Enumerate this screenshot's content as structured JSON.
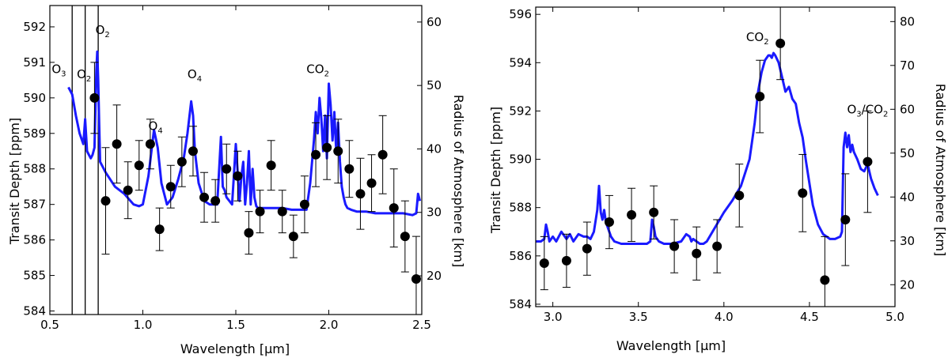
{
  "chart_data": [
    {
      "type": "line",
      "xlabel": "Wavelength [μm]",
      "ylabel": "Transit Depth [ppm]",
      "y2label": "Radius of Atmosphere [km]",
      "xlim": [
        0.5,
        2.5
      ],
      "ylim": [
        583.9,
        592.6
      ],
      "y2lim": [
        13.9,
        62.6
      ],
      "xticks": [
        0.5,
        1.0,
        1.5,
        2.0,
        2.5
      ],
      "yticks": [
        584,
        585,
        586,
        587,
        588,
        589,
        590,
        591,
        592
      ],
      "y2ticks": [
        20,
        30,
        40,
        50,
        60
      ],
      "grid": false,
      "series": [
        {
          "kind": "model",
          "color": "#1a1aff",
          "x": [
            0.6,
            0.62,
            0.64,
            0.66,
            0.68,
            0.69,
            0.7,
            0.71,
            0.72,
            0.73,
            0.74,
            0.75,
            0.755,
            0.76,
            0.765,
            0.77,
            0.8,
            0.85,
            0.9,
            0.95,
            0.98,
            1.0,
            1.03,
            1.06,
            1.08,
            1.1,
            1.13,
            1.16,
            1.19,
            1.22,
            1.24,
            1.26,
            1.27,
            1.28,
            1.3,
            1.33,
            1.36,
            1.4,
            1.42,
            1.43,
            1.44,
            1.45,
            1.48,
            1.5,
            1.52,
            1.53,
            1.54,
            1.55,
            1.56,
            1.57,
            1.58,
            1.59,
            1.6,
            1.61,
            1.62,
            1.65,
            1.7,
            1.75,
            1.8,
            1.85,
            1.88,
            1.9,
            1.92,
            1.93,
            1.94,
            1.95,
            1.96,
            1.97,
            1.98,
            1.99,
            2.0,
            2.01,
            2.02,
            2.03,
            2.04,
            2.05,
            2.06,
            2.07,
            2.08,
            2.09,
            2.1,
            2.12,
            2.15,
            2.2,
            2.25,
            2.3,
            2.35,
            2.4,
            2.45,
            2.47,
            2.48,
            2.49
          ],
          "y": [
            590.3,
            590.1,
            589.5,
            589.0,
            588.7,
            589.4,
            588.5,
            588.4,
            588.3,
            588.4,
            588.6,
            590.8,
            591.3,
            590.5,
            589.3,
            588.2,
            587.9,
            587.5,
            587.3,
            587.0,
            586.95,
            587.0,
            587.8,
            589.1,
            588.6,
            587.6,
            587.0,
            587.2,
            587.7,
            588.3,
            589.0,
            589.9,
            589.5,
            588.5,
            587.6,
            587.1,
            587.0,
            587.0,
            588.9,
            587.5,
            587.4,
            587.2,
            587.0,
            588.7,
            587.1,
            587.8,
            588.2,
            587.0,
            587.6,
            588.5,
            587.0,
            588.0,
            587.2,
            586.95,
            586.9,
            586.9,
            586.9,
            586.9,
            586.85,
            586.85,
            586.85,
            587.6,
            588.8,
            589.6,
            589.0,
            590.0,
            589.4,
            588.5,
            589.5,
            588.3,
            590.4,
            589.8,
            588.8,
            589.6,
            588.5,
            589.3,
            588.2,
            587.5,
            587.2,
            587.0,
            586.9,
            586.85,
            586.8,
            586.8,
            586.75,
            586.75,
            586.75,
            586.75,
            586.7,
            586.75,
            587.3,
            587.1
          ]
        },
        {
          "kind": "observations",
          "color": "#000000",
          "x": [
            0.74,
            0.8,
            0.86,
            0.92,
            0.98,
            1.04,
            1.09,
            1.15,
            1.21,
            1.27,
            1.33,
            1.39,
            1.45,
            1.51,
            1.57,
            1.63,
            1.69,
            1.75,
            1.81,
            1.87,
            1.93,
            1.99,
            2.05,
            2.11,
            2.17,
            2.23,
            2.29,
            2.35,
            2.41,
            2.47
          ],
          "y": [
            590.0,
            587.1,
            588.7,
            587.4,
            588.1,
            588.7,
            586.3,
            587.5,
            588.2,
            588.5,
            587.2,
            587.1,
            588.0,
            587.8,
            586.2,
            586.8,
            588.1,
            586.8,
            586.1,
            587.0,
            588.4,
            588.6,
            588.5,
            588.0,
            587.3,
            587.6,
            588.4,
            586.9,
            586.1,
            584.9
          ],
          "yerr": [
            1.0,
            1.5,
            1.1,
            0.8,
            0.7,
            0.7,
            0.6,
            0.6,
            0.7,
            0.7,
            0.7,
            0.6,
            0.7,
            0.7,
            0.6,
            0.6,
            0.7,
            0.6,
            0.6,
            0.8,
            0.9,
            0.9,
            0.9,
            0.8,
            1.0,
            0.8,
            1.1,
            1.1,
            1.0,
            1.2
          ]
        }
      ],
      "vlines": [
        0.62,
        0.69,
        0.76
      ],
      "annotations": [
        {
          "main": "O",
          "sub": "3",
          "x": 0.51,
          "y": 590.7
        },
        {
          "main": "O",
          "sub": "2",
          "x": 0.645,
          "y": 590.55
        },
        {
          "main": "O",
          "sub": "2",
          "x": 0.745,
          "y": 591.8
        },
        {
          "main": "O",
          "sub": "4",
          "x": 1.03,
          "y": 589.1
        },
        {
          "main": "O",
          "sub": "4",
          "x": 1.24,
          "y": 590.55
        },
        {
          "main": "CO",
          "sub": "2",
          "x": 1.88,
          "y": 590.7
        }
      ]
    },
    {
      "type": "line",
      "xlabel": "Wavelength [μm]",
      "ylabel": "Transit Depth [ppm]",
      "y2label": "Radius of Atmosphere [km]",
      "xlim": [
        2.9,
        5.0
      ],
      "ylim": [
        583.9,
        596.3
      ],
      "y2lim": [
        15.0,
        83.3
      ],
      "xticks": [
        3.0,
        3.5,
        4.0,
        4.5,
        5.0
      ],
      "yticks": [
        584,
        586,
        588,
        590,
        592,
        594,
        596
      ],
      "y2ticks": [
        20,
        30,
        40,
        50,
        60,
        70,
        80
      ],
      "grid": false,
      "series": [
        {
          "kind": "model",
          "color": "#1a1aff",
          "x": [
            2.9,
            2.93,
            2.95,
            2.96,
            2.97,
            2.98,
            3.0,
            3.02,
            3.05,
            3.08,
            3.1,
            3.12,
            3.15,
            3.18,
            3.2,
            3.22,
            3.24,
            3.26,
            3.27,
            3.28,
            3.29,
            3.3,
            3.31,
            3.32,
            3.34,
            3.36,
            3.4,
            3.45,
            3.5,
            3.55,
            3.57,
            3.58,
            3.59,
            3.6,
            3.62,
            3.65,
            3.7,
            3.75,
            3.78,
            3.8,
            3.81,
            3.82,
            3.84,
            3.86,
            3.88,
            3.9,
            3.95,
            4.0,
            4.05,
            4.1,
            4.15,
            4.18,
            4.2,
            4.22,
            4.24,
            4.26,
            4.27,
            4.28,
            4.29,
            4.3,
            4.32,
            4.34,
            4.36,
            4.38,
            4.4,
            4.42,
            4.44,
            4.46,
            4.48,
            4.5,
            4.52,
            4.55,
            4.58,
            4.6,
            4.62,
            4.65,
            4.68,
            4.69,
            4.7,
            4.71,
            4.72,
            4.73,
            4.74,
            4.75,
            4.76,
            4.78,
            4.8,
            4.82,
            4.84,
            4.86,
            4.88,
            4.9
          ],
          "y": [
            586.6,
            586.6,
            586.7,
            587.3,
            587.0,
            586.6,
            586.8,
            586.6,
            587.0,
            586.7,
            586.9,
            586.6,
            586.9,
            586.8,
            586.8,
            586.7,
            587.0,
            587.9,
            588.9,
            587.8,
            587.5,
            587.9,
            587.4,
            587.2,
            586.8,
            586.6,
            586.5,
            586.5,
            586.5,
            586.5,
            586.6,
            587.5,
            587.2,
            586.8,
            586.6,
            586.5,
            586.5,
            586.6,
            586.9,
            586.8,
            586.6,
            586.7,
            586.6,
            586.5,
            586.5,
            586.6,
            587.2,
            587.8,
            588.3,
            588.9,
            590.0,
            591.5,
            592.8,
            593.6,
            594.1,
            594.3,
            594.3,
            594.2,
            594.4,
            594.3,
            594.0,
            593.4,
            592.8,
            593.0,
            592.5,
            592.3,
            591.5,
            590.9,
            589.9,
            589.0,
            588.1,
            587.3,
            586.9,
            586.8,
            586.7,
            586.7,
            586.8,
            587.0,
            590.5,
            591.1,
            590.5,
            591.0,
            590.3,
            590.6,
            590.3,
            590.0,
            589.6,
            589.5,
            589.8,
            589.2,
            588.8,
            588.5
          ]
        },
        {
          "kind": "observations",
          "color": "#000000",
          "x": [
            2.95,
            3.08,
            3.2,
            3.33,
            3.46,
            3.59,
            3.71,
            3.84,
            3.96,
            4.09,
            4.21,
            4.33,
            4.46,
            4.59,
            4.71,
            4.84
          ],
          "y": [
            585.7,
            585.8,
            586.3,
            587.4,
            587.7,
            587.8,
            586.4,
            586.1,
            586.4,
            588.5,
            592.6,
            594.8,
            588.6,
            585.0,
            587.5,
            589.9
          ],
          "yerr": [
            1.1,
            1.1,
            1.1,
            1.1,
            1.1,
            1.1,
            1.1,
            1.1,
            1.1,
            1.3,
            1.5,
            1.5,
            1.6,
            1.8,
            1.9,
            2.1
          ]
        }
      ],
      "vlines": [],
      "annotations": [
        {
          "main": "CO",
          "sub": "2",
          "x": 4.13,
          "y": 594.9
        },
        {
          "main": "O",
          "sub": "3",
          "x": 4.72,
          "y": 591.9,
          "suffix_main": "/CO",
          "suffix_sub": "2"
        }
      ]
    }
  ]
}
